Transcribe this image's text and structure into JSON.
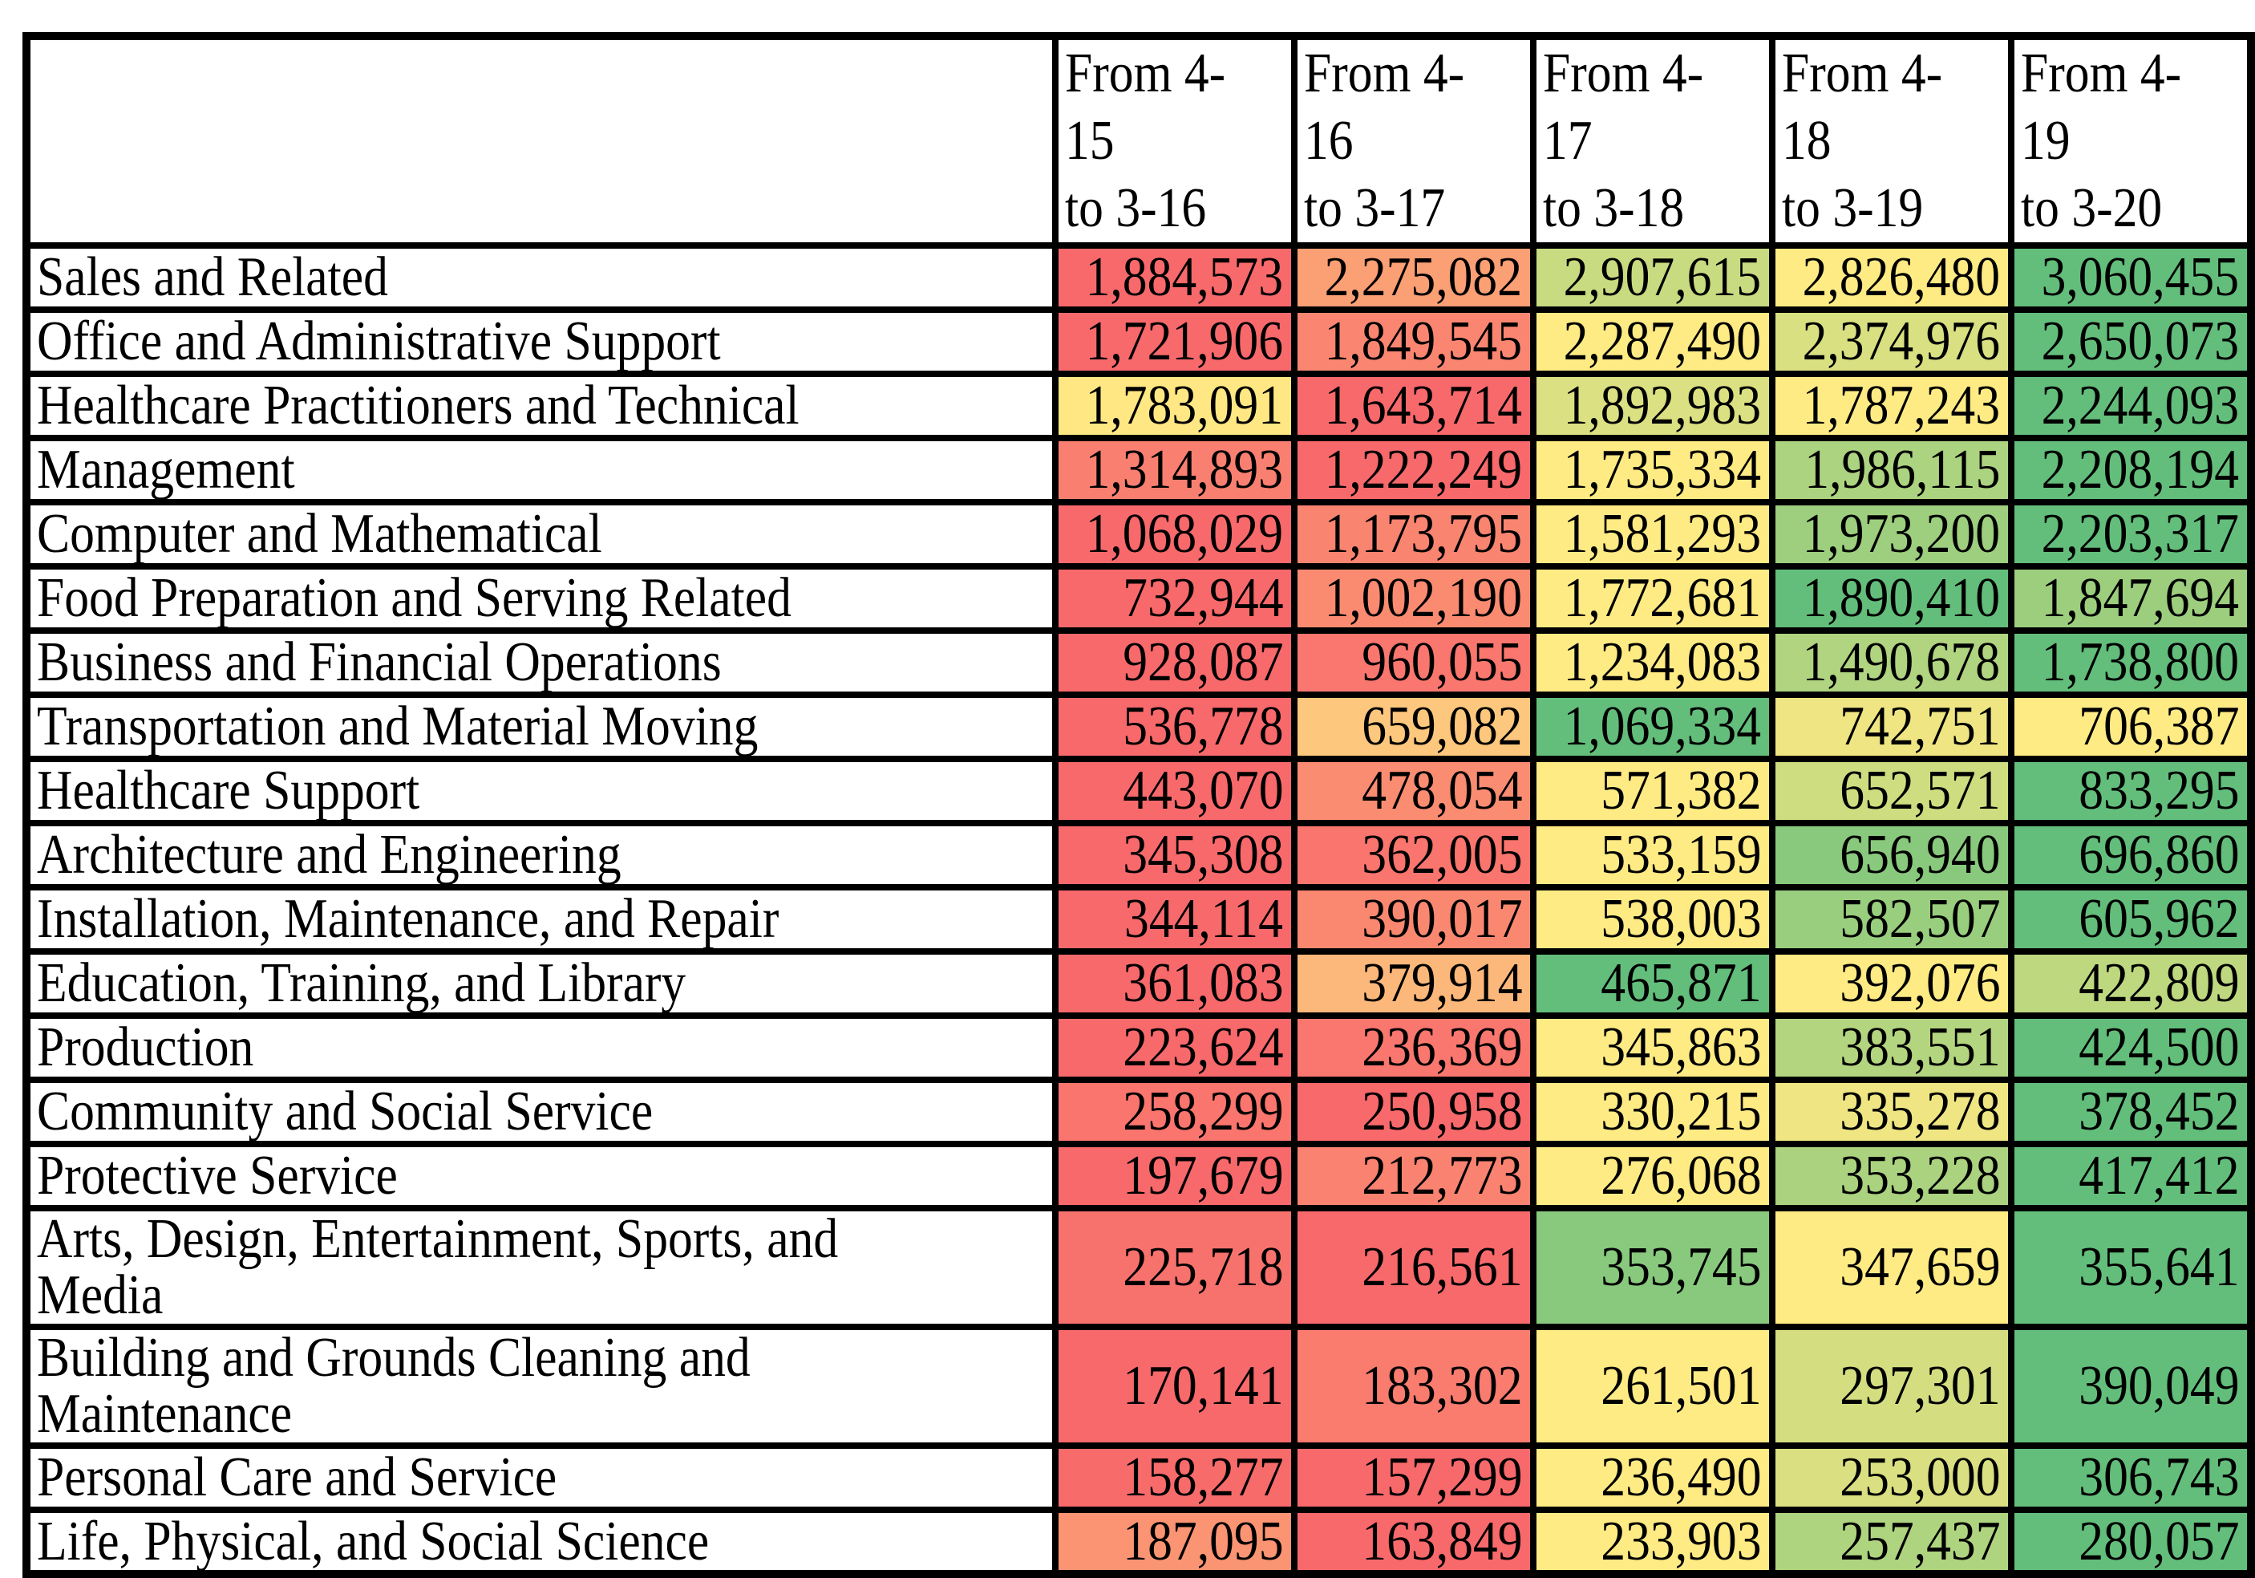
{
  "page": {
    "background": "#FFFFFF",
    "text_color": "#000000",
    "border_color": "#000000"
  },
  "chart_data": {
    "type": "table",
    "title": "",
    "columns": [
      "",
      "From 4-15\nto 3-16",
      "From 4-16\nto 3-17",
      "From 4-17\nto 3-18",
      "From 4-18\nto 3-19",
      "From 4-19\nto 3-20"
    ],
    "rows": [
      {
        "label": "Sales and Related",
        "values": [
          1884573,
          2275082,
          2907615,
          2826480,
          3060455
        ],
        "display": [
          "1,884,573",
          "2,275,082",
          "2,907,615",
          "2,826,480",
          "3,060,455"
        ]
      },
      {
        "label": "Office and Administrative Support",
        "values": [
          1721906,
          1849545,
          2287490,
          2374976,
          2650073
        ],
        "display": [
          "1,721,906",
          "1,849,545",
          "2,287,490",
          "2,374,976",
          "2,650,073"
        ]
      },
      {
        "label": "Healthcare Practitioners and Technical",
        "values": [
          1783091,
          1643714,
          1892983,
          1787243,
          2244093
        ],
        "display": [
          "1,783,091",
          "1,643,714",
          "1,892,983",
          "1,787,243",
          "2,244,093"
        ]
      },
      {
        "label": "Management",
        "values": [
          1314893,
          1222249,
          1735334,
          1986115,
          2208194
        ],
        "display": [
          "1,314,893",
          "1,222,249",
          "1,735,334",
          "1,986,115",
          "2,208,194"
        ]
      },
      {
        "label": "Computer and Mathematical",
        "values": [
          1068029,
          1173795,
          1581293,
          1973200,
          2203317
        ],
        "display": [
          "1,068,029",
          "1,173,795",
          "1,581,293",
          "1,973,200",
          "2,203,317"
        ]
      },
      {
        "label": "Food Preparation and Serving Related",
        "values": [
          732944,
          1002190,
          1772681,
          1890410,
          1847694
        ],
        "display": [
          "732,944",
          "1,002,190",
          "1,772,681",
          "1,890,410",
          "1,847,694"
        ]
      },
      {
        "label": "Business and Financial Operations",
        "values": [
          928087,
          960055,
          1234083,
          1490678,
          1738800
        ],
        "display": [
          "928,087",
          "960,055",
          "1,234,083",
          "1,490,678",
          "1,738,800"
        ]
      },
      {
        "label": "Transportation and Material Moving",
        "values": [
          536778,
          659082,
          1069334,
          742751,
          706387
        ],
        "display": [
          "536,778",
          "659,082",
          "1,069,334",
          "742,751",
          "706,387"
        ]
      },
      {
        "label": "Healthcare Support",
        "values": [
          443070,
          478054,
          571382,
          652571,
          833295
        ],
        "display": [
          "443,070",
          "478,054",
          "571,382",
          "652,571",
          "833,295"
        ]
      },
      {
        "label": "Architecture and Engineering",
        "values": [
          345308,
          362005,
          533159,
          656940,
          696860
        ],
        "display": [
          "345,308",
          "362,005",
          "533,159",
          "656,940",
          "696,860"
        ]
      },
      {
        "label": "Installation, Maintenance, and Repair",
        "values": [
          344114,
          390017,
          538003,
          582507,
          605962
        ],
        "display": [
          "344,114",
          "390,017",
          "538,003",
          "582,507",
          "605,962"
        ]
      },
      {
        "label": "Education, Training, and Library",
        "values": [
          361083,
          379914,
          465871,
          392076,
          422809
        ],
        "display": [
          "361,083",
          "379,914",
          "465,871",
          "392,076",
          "422,809"
        ]
      },
      {
        "label": "Production",
        "values": [
          223624,
          236369,
          345863,
          383551,
          424500
        ],
        "display": [
          "223,624",
          "236,369",
          "345,863",
          "383,551",
          "424,500"
        ]
      },
      {
        "label": "Community and Social Service",
        "values": [
          258299,
          250958,
          330215,
          335278,
          378452
        ],
        "display": [
          "258,299",
          "250,958",
          "330,215",
          "335,278",
          "378,452"
        ]
      },
      {
        "label": "Protective Service",
        "values": [
          197679,
          212773,
          276068,
          353228,
          417412
        ],
        "display": [
          "197,679",
          "212,773",
          "276,068",
          "353,228",
          "417,412"
        ]
      },
      {
        "label": "Arts, Design, Entertainment, Sports, and Media",
        "values": [
          225718,
          216561,
          353745,
          347659,
          355641
        ],
        "display": [
          "225,718",
          "216,561",
          "353,745",
          "347,659",
          "355,641"
        ]
      },
      {
        "label": "Building and Grounds Cleaning and Maintenance",
        "values": [
          170141,
          183302,
          261501,
          297301,
          390049
        ],
        "display": [
          "170,141",
          "183,302",
          "261,501",
          "297,301",
          "390,049"
        ]
      },
      {
        "label": "Personal Care and Service",
        "values": [
          158277,
          157299,
          236490,
          253000,
          306743
        ],
        "display": [
          "158,277",
          "157,299",
          "236,490",
          "253,000",
          "306,743"
        ]
      },
      {
        "label": "Life, Physical, and Social Science",
        "values": [
          187095,
          163849,
          233903,
          257437,
          280057
        ],
        "display": [
          "187,095",
          "163,849",
          "233,903",
          "257,437",
          "280,057"
        ]
      }
    ],
    "conditional_formatting": {
      "description": "3-color scale applied per row: minimum = red, 50th percentile = yellow, maximum = green, linear RGB interpolation",
      "min_color": "#F8696B",
      "mid_color": "#FFEB84",
      "max_color": "#63BE7B"
    },
    "legend_position": "none",
    "grid": true
  }
}
